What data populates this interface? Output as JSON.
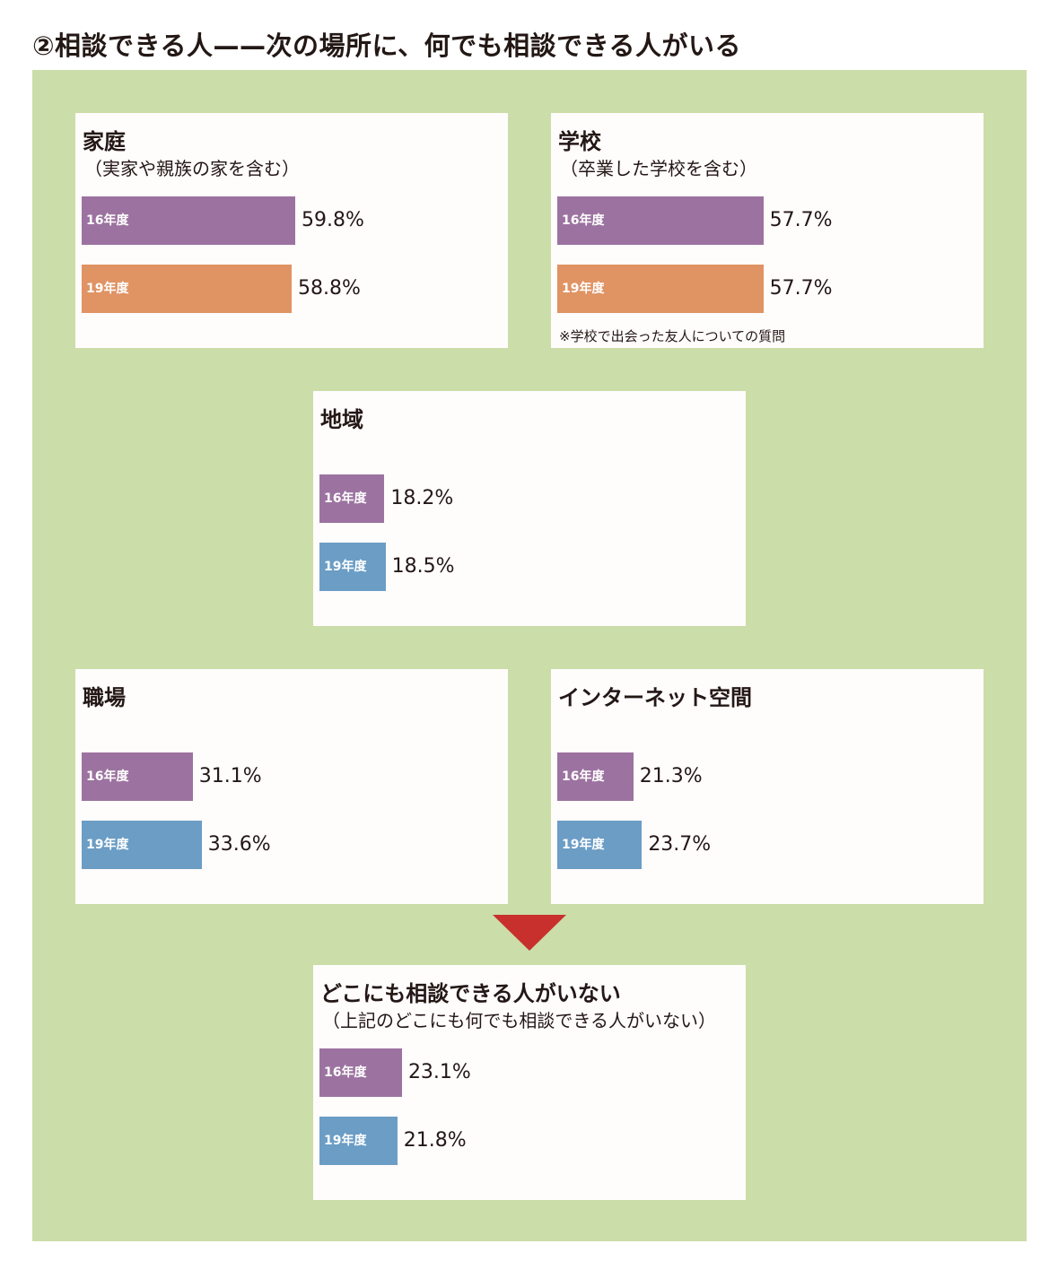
{
  "page_title": "②相談できる人——次の場所に、何でも相談できる人がいる",
  "colors": {
    "background": "#cbdda8",
    "panel": "#fffcfc",
    "fy16": "#9c73a0",
    "fy19_orange": "#e09363",
    "fy19_blue": "#6b9dc5",
    "arrow": "#c8302e"
  },
  "chart_data": [
    {
      "type": "bar",
      "orientation": "horizontal",
      "title": "家庭",
      "subtitle": "（実家や親族の家を含む）",
      "categories": [
        "16年度",
        "19年度"
      ],
      "values": [
        59.8,
        58.8
      ],
      "value_labels": [
        "59.8%",
        "58.8%"
      ],
      "bar_colors": [
        "#9c73a0",
        "#e09363"
      ]
    },
    {
      "type": "bar",
      "orientation": "horizontal",
      "title": "学校",
      "subtitle": "（卒業した学校を含む）",
      "categories": [
        "16年度",
        "19年度"
      ],
      "values": [
        57.7,
        57.7
      ],
      "value_labels": [
        "57.7%",
        "57.7%"
      ],
      "bar_colors": [
        "#9c73a0",
        "#e09363"
      ],
      "note": "※学校で出会った友人についての質問"
    },
    {
      "type": "bar",
      "orientation": "horizontal",
      "title": "地域",
      "categories": [
        "16年度",
        "19年度"
      ],
      "values": [
        18.2,
        18.5
      ],
      "value_labels": [
        "18.2%",
        "18.5%"
      ],
      "bar_colors": [
        "#9c73a0",
        "#6b9dc5"
      ]
    },
    {
      "type": "bar",
      "orientation": "horizontal",
      "title": "職場",
      "categories": [
        "16年度",
        "19年度"
      ],
      "values": [
        31.1,
        33.6
      ],
      "value_labels": [
        "31.1%",
        "33.6%"
      ],
      "bar_colors": [
        "#9c73a0",
        "#6b9dc5"
      ]
    },
    {
      "type": "bar",
      "orientation": "horizontal",
      "title": "インターネット空間",
      "categories": [
        "16年度",
        "19年度"
      ],
      "values": [
        21.3,
        23.7
      ],
      "value_labels": [
        "21.3%",
        "23.7%"
      ],
      "bar_colors": [
        "#9c73a0",
        "#6b9dc5"
      ]
    },
    {
      "type": "bar",
      "orientation": "horizontal",
      "title": "どこにも相談できる人がいない",
      "subtitle": "（上記のどこにも何でも相談できる人がいない）",
      "categories": [
        "16年度",
        "19年度"
      ],
      "values": [
        23.1,
        21.8
      ],
      "value_labels": [
        "23.1%",
        "21.8%"
      ],
      "bar_colors": [
        "#9c73a0",
        "#6b9dc5"
      ]
    }
  ]
}
